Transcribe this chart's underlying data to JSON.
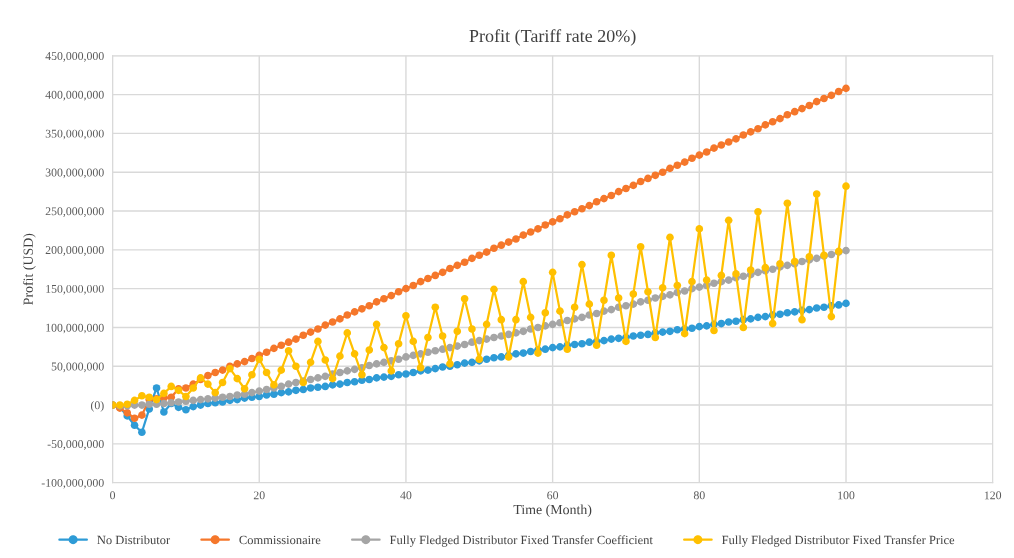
{
  "chart_data": {
    "type": "line",
    "title": "Profit (Tariff rate 20%)",
    "xlabel": "Time (Month)",
    "ylabel": "Profit (USD)",
    "x": [
      0,
      1,
      2,
      3,
      4,
      5,
      6,
      7,
      8,
      9,
      10,
      11,
      12,
      13,
      14,
      15,
      16,
      17,
      18,
      19,
      20,
      21,
      22,
      23,
      24,
      25,
      26,
      27,
      28,
      29,
      30,
      31,
      32,
      33,
      34,
      35,
      36,
      37,
      38,
      39,
      40,
      41,
      42,
      43,
      44,
      45,
      46,
      47,
      48,
      49,
      50,
      51,
      52,
      53,
      54,
      55,
      56,
      57,
      58,
      59,
      60,
      61,
      62,
      63,
      64,
      65,
      66,
      67,
      68,
      69,
      70,
      71,
      72,
      73,
      74,
      75,
      76,
      77,
      78,
      79,
      80,
      81,
      82,
      83,
      84,
      85,
      86,
      87,
      88,
      89,
      90,
      91,
      92,
      93,
      94,
      95,
      96,
      97,
      98,
      99,
      100
    ],
    "series": [
      {
        "name": "No Distributor",
        "color": "#2e9bd6",
        "values": [
          0,
          -3000000.0,
          -14000000.0,
          -26000000.0,
          -35000000.0,
          -5000000.0,
          22000000.0,
          -9000000.0,
          2000000.0,
          -3000000.0,
          -6000000.0,
          -2000000.0,
          0,
          2000000.0,
          3000000.0,
          4000000.0,
          6000000.0,
          7000000.0,
          9000000.0,
          10000000.0,
          11000000.0,
          13000000.0,
          14000000.0,
          16000000.0,
          17000000.0,
          19000000.0,
          20000000.0,
          22000000.0,
          23000000.0,
          24000000.0,
          26000000.0,
          27000000.0,
          29000000.0,
          30000000.0,
          32000000.0,
          33000000.0,
          35000000.0,
          36000000.0,
          37000000.0,
          39000000.0,
          40000000.0,
          42000000.0,
          44000000.0,
          45000000.0,
          47000000.0,
          49000000.0,
          50000000.0,
          52000000.0,
          54000000.0,
          55000000.0,
          57000000.0,
          59000000.0,
          61000000.0,
          62000000.0,
          64000000.0,
          66000000.0,
          67000000.0,
          69000000.0,
          71000000.0,
          72000000.0,
          74000000.0,
          75000000.0,
          77000000.0,
          78000000.0,
          79000000.0,
          81000000.0,
          82000000.0,
          83000000.0,
          85000000.0,
          86000000.0,
          87000000.0,
          89000000.0,
          90000000.0,
          91000000.0,
          93000000.0,
          94000000.0,
          95000000.0,
          97000000.0,
          98000000.0,
          99000000.0,
          101000000.0,
          102000000.0,
          104000000.0,
          105000000.0,
          107000000.0,
          108000000.0,
          110000000.0,
          111000000.0,
          113000000.0,
          114000000.0,
          116000000.0,
          117000000.0,
          119000000.0,
          120000000.0,
          122000000.0,
          123000000.0,
          125000000.0,
          126000000.0,
          128000000.0,
          129000000.0,
          131000000.0
        ]
      },
      {
        "name": "Commissionaire",
        "color": "#f5772b",
        "values": [
          0,
          -4000000.0,
          -10000000.0,
          -17000000.0,
          -13000000.0,
          7000000.0,
          8000000.0,
          9000000.0,
          10000000.0,
          21000000.0,
          22000000.0,
          27000000.0,
          33000000.0,
          38000000.0,
          42000000.0,
          45000000.0,
          50000000.0,
          53000000.0,
          56000000.0,
          60000000.0,
          64000000.0,
          68000000.0,
          73000000.0,
          77000000.0,
          81000000.0,
          85000000.0,
          90000000.0,
          94000000.0,
          98000000.0,
          103000000.0,
          107000000.0,
          111000000.0,
          116000000.0,
          120000000.0,
          124000000.0,
          128000000.0,
          133000000.0,
          137000000.0,
          141000000.0,
          146000000.0,
          150000000.0,
          154000000.0,
          159000000.0,
          163000000.0,
          167000000.0,
          171000000.0,
          176000000.0,
          180000000.0,
          184000000.0,
          189000000.0,
          193000000.0,
          197000000.0,
          202000000.0,
          206000000.0,
          210000000.0,
          214000000.0,
          219000000.0,
          223000000.0,
          227000000.0,
          232000000.0,
          236000000.0,
          240000000.0,
          245000000.0,
          249000000.0,
          253000000.0,
          257000000.0,
          262000000.0,
          266000000.0,
          270000000.0,
          275000000.0,
          279000000.0,
          283000000.0,
          288000000.0,
          292000000.0,
          296000000.0,
          300000000.0,
          305000000.0,
          309000000.0,
          313000000.0,
          318000000.0,
          322000000.0,
          326000000.0,
          331000000.0,
          335000000.0,
          339000000.0,
          343000000.0,
          348000000.0,
          352000000.0,
          356000000.0,
          361000000.0,
          365000000.0,
          369000000.0,
          374000000.0,
          378000000.0,
          382000000.0,
          386000000.0,
          391000000.0,
          395000000.0,
          399000000.0,
          404000000.0,
          408000000.0
        ]
      },
      {
        "name": "Fully Fledged Distributor Fixed Transfer Coefficient",
        "color": "#a5a5a5",
        "values": [
          0,
          -1000000.0,
          -1000000.0,
          0,
          0,
          1000000.0,
          1000000.0,
          2000000.0,
          3000000.0,
          4000000.0,
          5000000.0,
          6000000.0,
          7000000.0,
          8000000.0,
          9000000.0,
          10000000.0,
          11000000.0,
          13000000.0,
          14000000.0,
          16000000.0,
          18000000.0,
          20000000.0,
          22000000.0,
          24000000.0,
          27000000.0,
          29000000.0,
          31000000.0,
          33000000.0,
          35000000.0,
          37000000.0,
          40000000.0,
          42000000.0,
          44000000.0,
          46000000.0,
          48000000.0,
          51000000.0,
          53000000.0,
          55000000.0,
          57000000.0,
          59000000.0,
          62000000.0,
          64000000.0,
          66000000.0,
          68000000.0,
          70000000.0,
          72000000.0,
          74000000.0,
          76000000.0,
          78000000.0,
          81000000.0,
          83000000.0,
          85000000.0,
          87000000.0,
          89000000.0,
          91000000.0,
          93000000.0,
          95000000.0,
          98000000.0,
          100000000.0,
          102000000.0,
          104000000.0,
          106000000.0,
          109000000.0,
          111000000.0,
          113000000.0,
          116000000.0,
          118000000.0,
          121000000.0,
          123000000.0,
          126000000.0,
          128000000.0,
          130000000.0,
          133000000.0,
          135000000.0,
          138000000.0,
          140000000.0,
          142000000.0,
          145000000.0,
          147000000.0,
          150000000.0,
          152000000.0,
          154000000.0,
          157000000.0,
          159000000.0,
          161000000.0,
          164000000.0,
          166000000.0,
          168000000.0,
          171000000.0,
          173000000.0,
          175000000.0,
          178000000.0,
          180000000.0,
          182000000.0,
          185000000.0,
          187000000.0,
          189000000.0,
          192000000.0,
          194000000.0,
          197000000.0,
          199000000.0
        ]
      },
      {
        "name": "Fully Fledged Distributor Fixed Transfer Price",
        "color": "#ffc000",
        "values": [
          0,
          0,
          1000000.0,
          6000000.0,
          12000000.0,
          10000000.0,
          7000000.0,
          15000000.0,
          24000000.0,
          19000000.0,
          11000000.0,
          22000000.0,
          35000000.0,
          27000000.0,
          16000000.0,
          29000000.0,
          47000000.0,
          34000000.0,
          21000000.0,
          39000000.0,
          59000000.0,
          42000000.0,
          26000000.0,
          45000000.0,
          70000000.0,
          50000000.0,
          29000000.0,
          55000000.0,
          82000000.0,
          58000000.0,
          34000000.0,
          63000000.0,
          93000000.0,
          66000000.0,
          39000000.0,
          71000000.0,
          104000000.0,
          74000000.0,
          44000000.0,
          79000000.0,
          115000000.0,
          82000000.0,
          48000000.0,
          87000000.0,
          126000000.0,
          89000000.0,
          53000000.0,
          95000000.0,
          137000000.0,
          98000000.0,
          59000000.0,
          104000000.0,
          149000000.0,
          110000000.0,
          62000000.0,
          110000000.0,
          159000000.0,
          113000000.0,
          67000000.0,
          119000000.0,
          171000000.0,
          121000000.0,
          72000000.0,
          126000000.0,
          181000000.0,
          130000000.0,
          77000000.0,
          135000000.0,
          193000000.0,
          138000000.0,
          82000000.0,
          143000000.0,
          204000000.0,
          146000000.0,
          87000000.0,
          151000000.0,
          216000000.0,
          154000000.0,
          92000000.0,
          159000000.0,
          227000000.0,
          161000000.0,
          96000000.0,
          167000000.0,
          238000000.0,
          169000000.0,
          100000000.0,
          174000000.0,
          249000000.0,
          177000000.0,
          105000000.0,
          182000000.0,
          260000000.0,
          185000000.0,
          110000000.0,
          191000000.0,
          272000000.0,
          193000000.0,
          114000000.0,
          198000000.0,
          282000000.0
        ]
      }
    ],
    "xlim": [
      0,
      120
    ],
    "xticks": [
      0,
      20,
      40,
      60,
      80,
      100,
      120
    ],
    "ylim": [
      -100000000,
      450000000
    ],
    "yticks": [
      {
        "value": -100000000,
        "label": "-100,000,000"
      },
      {
        "value": -50000000,
        "label": "-50,000,000"
      },
      {
        "value": 0,
        "label": "(0)"
      },
      {
        "value": 50000000,
        "label": "50,000,000"
      },
      {
        "value": 100000000,
        "label": "100,000,000"
      },
      {
        "value": 150000000,
        "label": "150,000,000"
      },
      {
        "value": 200000000,
        "label": "200,000,000"
      },
      {
        "value": 250000000,
        "label": "250,000,000"
      },
      {
        "value": 300000000,
        "label": "300,000,000"
      },
      {
        "value": 350000000,
        "label": "350,000,000"
      },
      {
        "value": 400000000,
        "label": "400,000,000"
      },
      {
        "value": 450000000,
        "label": "450,000,000"
      }
    ],
    "grid": true,
    "legend": "bottom",
    "marker": "circle",
    "line_style": "solid"
  }
}
